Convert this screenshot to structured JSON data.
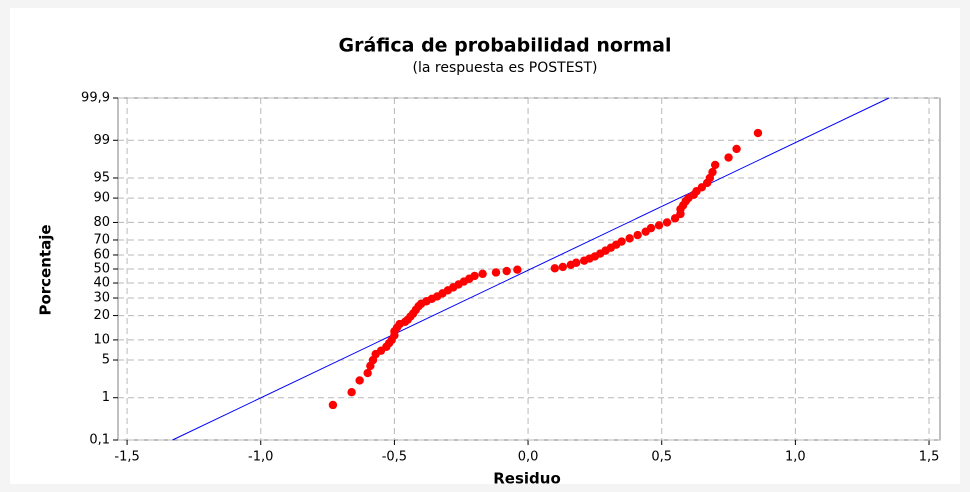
{
  "chart_data": {
    "type": "scatter",
    "title": "Gráfica de probabilidad normal",
    "subtitle": "(la respuesta es POSTEST)",
    "xlabel": "Residuo",
    "ylabel": "Porcentaje",
    "yscale": "probability",
    "grid": true,
    "xlim": [
      -1.534,
      1.541
    ],
    "ylim": [
      0.1,
      99.9
    ],
    "xticks": [
      {
        "value": -1.5,
        "label": "-1,5"
      },
      {
        "value": -1.0,
        "label": "-1,0"
      },
      {
        "value": -0.5,
        "label": "-0,5"
      },
      {
        "value": 0,
        "label": "0,0"
      },
      {
        "value": 0.5,
        "label": "0,5"
      },
      {
        "value": 1.0,
        "label": "1,0"
      },
      {
        "value": 1.5,
        "label": "1,5"
      }
    ],
    "yticks": [
      {
        "value": 0.1,
        "label": "0,1"
      },
      1,
      5,
      10,
      20,
      30,
      40,
      50,
      60,
      70,
      80,
      90,
      95,
      99,
      {
        "value": 99.9,
        "label": "99,9"
      }
    ],
    "points": {
      "color": "#ff0000",
      "x": [
        -0.73,
        -0.66,
        -0.63,
        -0.6,
        -0.59,
        -0.58,
        -0.57,
        -0.55,
        -0.53,
        -0.52,
        -0.51,
        -0.5,
        -0.5,
        -0.49,
        -0.48,
        -0.46,
        -0.45,
        -0.44,
        -0.43,
        -0.42,
        -0.41,
        -0.4,
        -0.38,
        -0.36,
        -0.34,
        -0.32,
        -0.3,
        -0.28,
        -0.26,
        -0.24,
        -0.22,
        -0.2,
        -0.17,
        -0.12,
        -0.08,
        -0.04,
        0.1,
        0.13,
        0.16,
        0.18,
        0.21,
        0.23,
        0.25,
        0.27,
        0.29,
        0.31,
        0.33,
        0.35,
        0.38,
        0.41,
        0.44,
        0.46,
        0.49,
        0.52,
        0.55,
        0.57,
        0.57,
        0.58,
        0.59,
        0.6,
        0.62,
        0.63,
        0.65,
        0.67,
        0.68,
        0.69,
        0.7,
        0.75,
        0.78,
        0.86
      ],
      "y": [
        0.7,
        1.3,
        2.2,
        3,
        4,
        5,
        6.2,
        7,
        8,
        9,
        10,
        11.5,
        13,
        14.5,
        16,
        17,
        18,
        19.5,
        21,
        23,
        25,
        26.5,
        28,
        29.5,
        31,
        33,
        35,
        37,
        39,
        41,
        43,
        45,
        46.5,
        47.5,
        48.5,
        49.5,
        50.5,
        51.5,
        53,
        54.5,
        56,
        57.5,
        59,
        61,
        63,
        65,
        67,
        69,
        71,
        73,
        75,
        77,
        78.5,
        80,
        82,
        84,
        86,
        87.5,
        89,
        90,
        91,
        92,
        93,
        94,
        95,
        96,
        97,
        97.8,
        98.5,
        99.3
      ]
    },
    "fit_line": {
      "color": "#0000ff",
      "x": [
        -1.33,
        1.35
      ],
      "y": [
        0.1,
        99.9
      ]
    }
  }
}
